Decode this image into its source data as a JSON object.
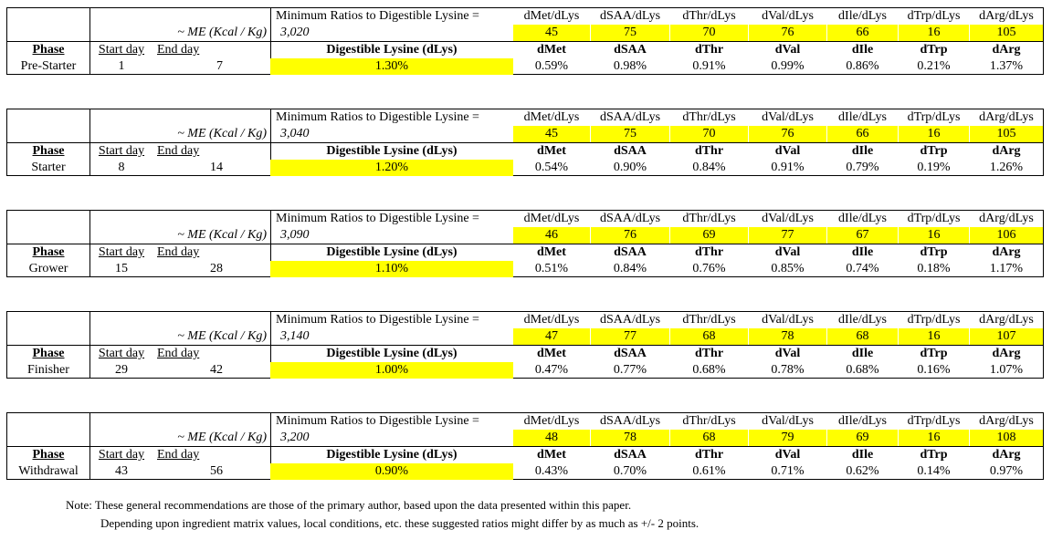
{
  "labels": {
    "me_label": "~ ME (Kcal / Kg)",
    "min_ratio_label": "Minimum Ratios to Digestible Lysine =",
    "ratio_headers": [
      "dMet/dLys",
      "dSAA/dLys",
      "dThr/dLys",
      "dVal/dLys",
      "dIle/dLys",
      "dTrp/dLys",
      "dArg/dLys"
    ],
    "phase_header": "Phase",
    "start_header": "Start day",
    "end_header": "End day",
    "dlys_header": "Digestible Lysine (dLys)",
    "aa_headers": [
      "dMet",
      "dSAA",
      "dThr",
      "dVal",
      "dIle",
      "dTrp",
      "dArg"
    ]
  },
  "phases": [
    {
      "name": "Pre-Starter",
      "start": "1",
      "end": "7",
      "me": "3,020",
      "ratios": [
        "45",
        "75",
        "70",
        "76",
        "66",
        "16",
        "105"
      ],
      "dlys": "1.30%",
      "values": [
        "0.59%",
        "0.98%",
        "0.91%",
        "0.99%",
        "0.86%",
        "0.21%",
        "1.37%"
      ]
    },
    {
      "name": "Starter",
      "start": "8",
      "end": "14",
      "me": "3,040",
      "ratios": [
        "45",
        "75",
        "70",
        "76",
        "66",
        "16",
        "105"
      ],
      "dlys": "1.20%",
      "values": [
        "0.54%",
        "0.90%",
        "0.84%",
        "0.91%",
        "0.79%",
        "0.19%",
        "1.26%"
      ]
    },
    {
      "name": "Grower",
      "start": "15",
      "end": "28",
      "me": "3,090",
      "ratios": [
        "46",
        "76",
        "69",
        "77",
        "67",
        "16",
        "106"
      ],
      "dlys": "1.10%",
      "values": [
        "0.51%",
        "0.84%",
        "0.76%",
        "0.85%",
        "0.74%",
        "0.18%",
        "1.17%"
      ]
    },
    {
      "name": "Finisher",
      "start": "29",
      "end": "42",
      "me": "3,140",
      "ratios": [
        "47",
        "77",
        "68",
        "78",
        "68",
        "16",
        "107"
      ],
      "dlys": "1.00%",
      "values": [
        "0.47%",
        "0.77%",
        "0.68%",
        "0.78%",
        "0.68%",
        "0.16%",
        "1.07%"
      ]
    },
    {
      "name": "Withdrawal",
      "start": "43",
      "end": "56",
      "me": "3,200",
      "ratios": [
        "48",
        "78",
        "68",
        "79",
        "69",
        "16",
        "108"
      ],
      "dlys": "0.90%",
      "values": [
        "0.43%",
        "0.70%",
        "0.61%",
        "0.71%",
        "0.62%",
        "0.14%",
        "0.97%"
      ]
    }
  ],
  "note": {
    "line1": "Note: These general recommendations are those of the primary author, based upon the data presented within this paper.",
    "line2": "Depending upon ingredient matrix values, local conditions, etc. these suggested ratios might differ by as much as +/- 2 points."
  },
  "colors": {
    "highlight": "#ffff00"
  }
}
